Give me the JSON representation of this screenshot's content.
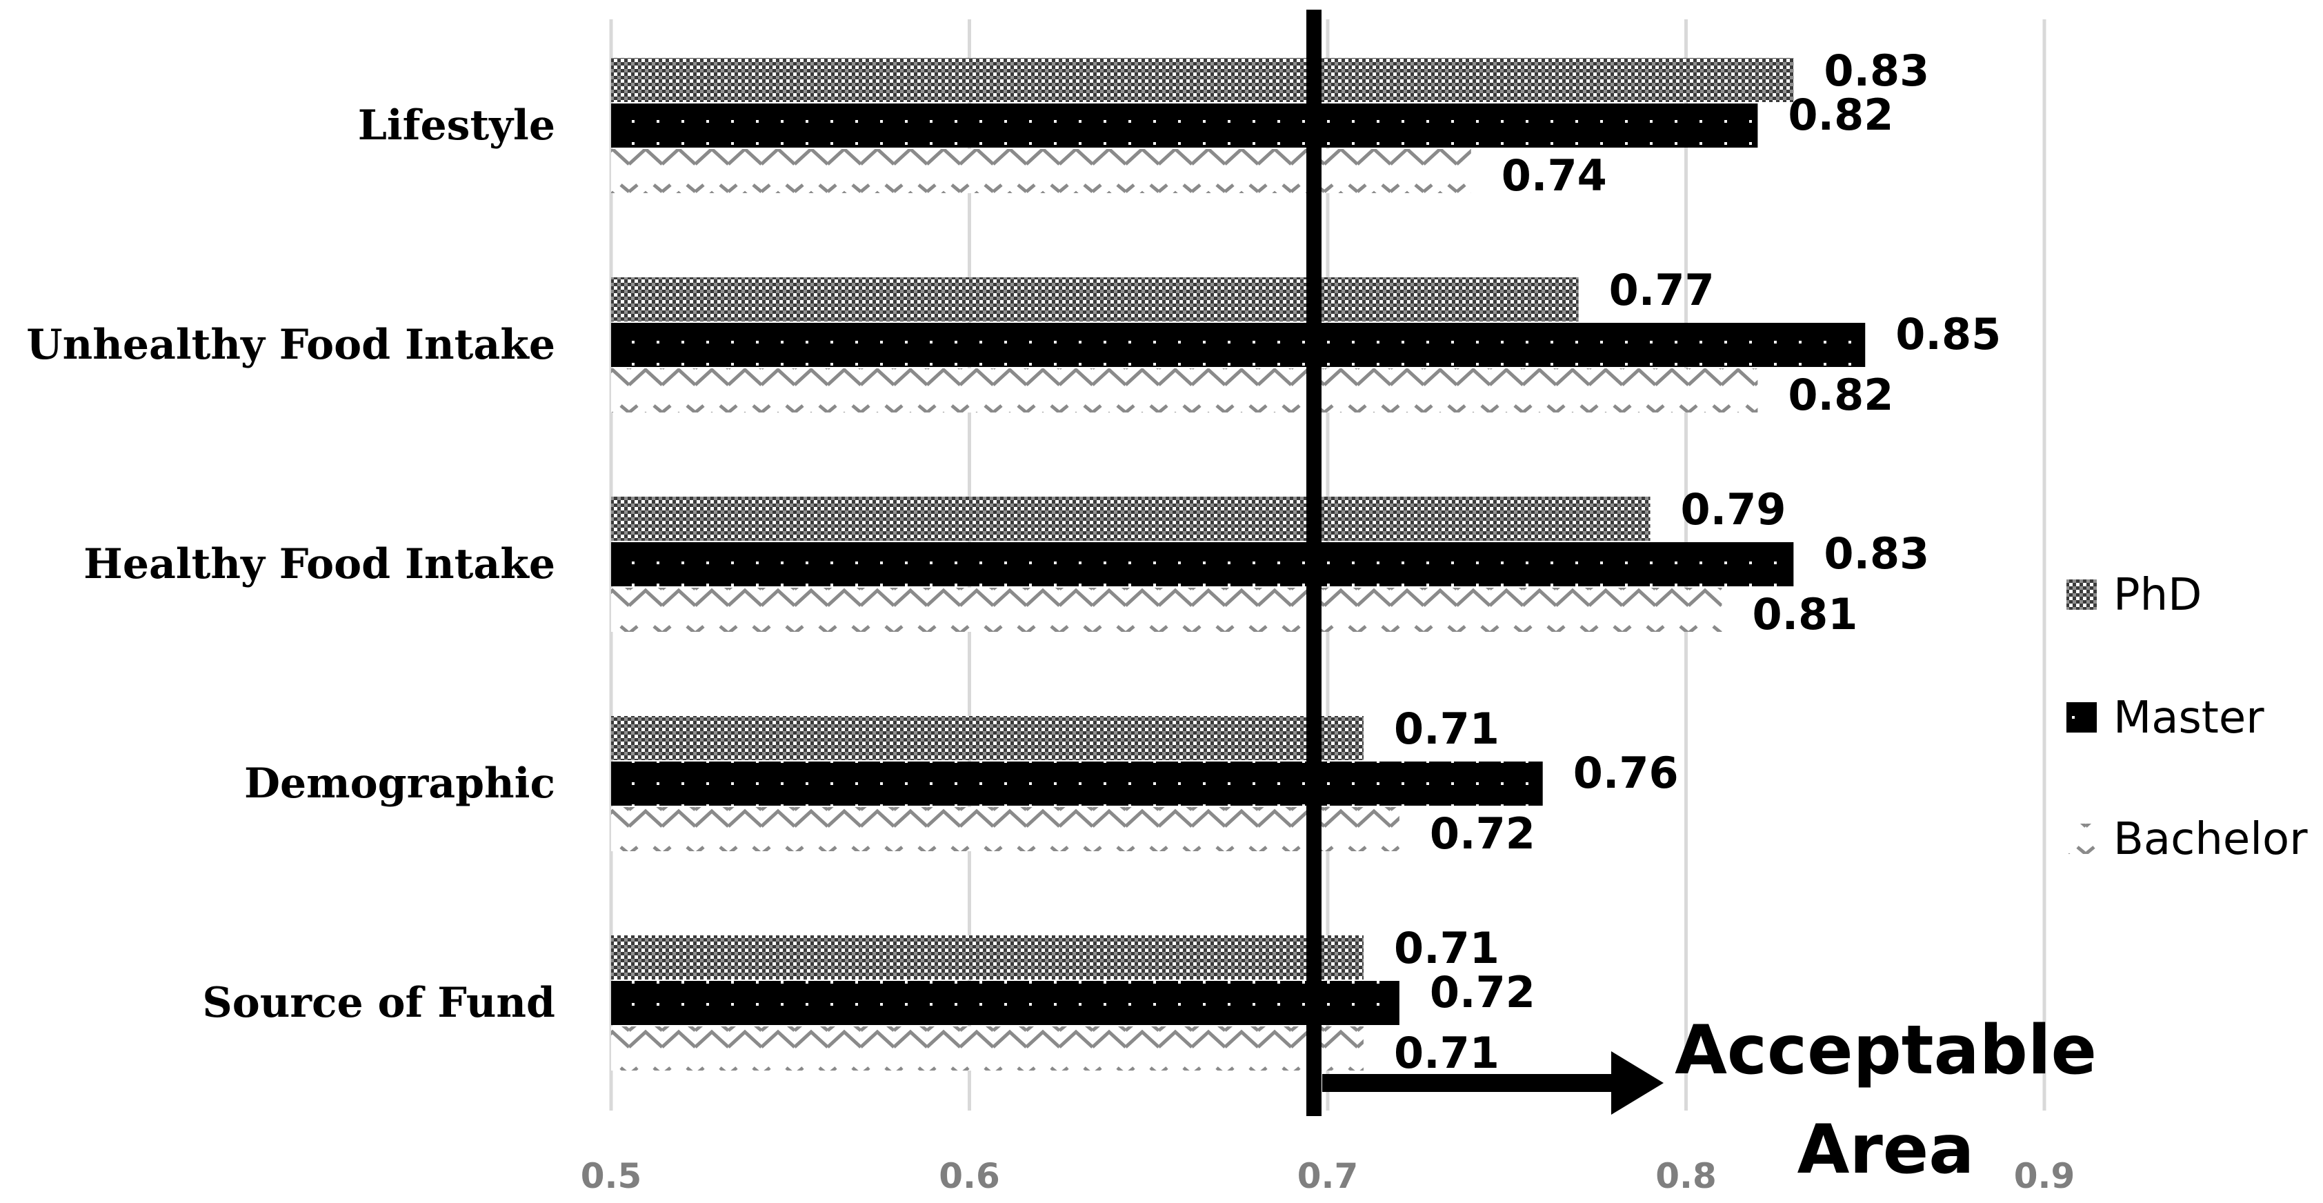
{
  "chart_data": {
    "type": "bar",
    "orientation": "horizontal",
    "categories": [
      "Lifestyle",
      "Unhealthy Food Intake",
      "Healthy Food Intake",
      "Demographic",
      "Source of Fund"
    ],
    "series": [
      {
        "name": "PhD",
        "values": [
          0.83,
          0.77,
          0.79,
          0.71,
          0.71
        ]
      },
      {
        "name": "Master",
        "values": [
          0.82,
          0.85,
          0.83,
          0.76,
          0.72
        ]
      },
      {
        "name": "Bachelor",
        "values": [
          0.74,
          0.82,
          0.81,
          0.72,
          0.71
        ]
      }
    ],
    "xlim": [
      0.5,
      0.9
    ],
    "x_ticks": [
      "0.5",
      "0.6",
      "0.7",
      "0.8",
      "0.9"
    ],
    "grid": "vertical",
    "legend": "right",
    "threshold": 0.7,
    "annotation": {
      "line1": "Acceptable",
      "line2": "Area"
    }
  },
  "colors": {
    "phd_fill": "#555555",
    "master_fill": "#000000",
    "bachelor_stroke": "#8a8a8a",
    "grid": "#d9d9d9",
    "tick": "#7f7f7f"
  }
}
